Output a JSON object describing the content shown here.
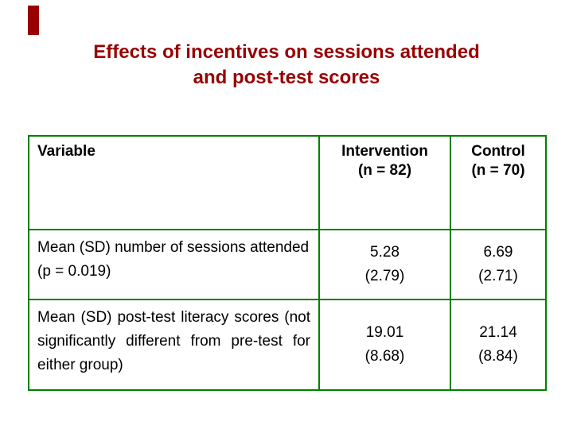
{
  "colors": {
    "accent": "#990000",
    "table_border": "#008000"
  },
  "slide": {
    "title_line1": "Effects of incentives on sessions attended",
    "title_line2": "and post-test scores"
  },
  "table": {
    "header": {
      "variable": "Variable",
      "intervention": "Intervention",
      "intervention_n": "(n = 82)",
      "control": "Control",
      "control_n": "(n = 70)"
    },
    "rows": [
      {
        "variable": "Mean (SD) number of sessions attended (p = 0.019)",
        "intervention": {
          "value": "5.28",
          "sd": "(2.79)"
        },
        "control": {
          "value": "6.69",
          "sd": "(2.71)"
        }
      },
      {
        "variable": "Mean (SD) post-test literacy scores (not significantly different from pre-test for either group)",
        "intervention": {
          "value": "19.01",
          "sd": "(8.68)"
        },
        "control": {
          "value": "21.14",
          "sd": "(8.84)"
        }
      }
    ]
  }
}
